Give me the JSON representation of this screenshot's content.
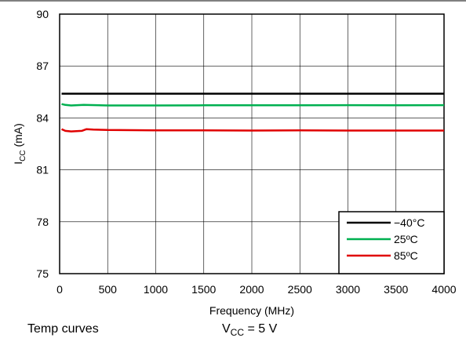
{
  "chart_data": {
    "type": "line",
    "xlabel": "Frequency (MHz)",
    "ylabel_main": "I",
    "ylabel_sub": "CC",
    "ylabel_unit": " (mA)",
    "xlim": [
      0,
      4000
    ],
    "ylim": [
      75,
      90
    ],
    "xticks": [
      0,
      500,
      1000,
      1500,
      2000,
      2500,
      3000,
      3500,
      4000
    ],
    "yticks": [
      75,
      78,
      81,
      84,
      87,
      90
    ],
    "grid": true,
    "legend_position": "bottom-right",
    "series": [
      {
        "name": "−40°C",
        "color": "#000000",
        "x": [
          20,
          250,
          500,
          1000,
          1500,
          2000,
          2500,
          3000,
          3500,
          4000
        ],
        "y": [
          85.4,
          85.4,
          85.4,
          85.4,
          85.4,
          85.4,
          85.4,
          85.4,
          85.4,
          85.4
        ]
      },
      {
        "name": "25ºC",
        "color": "#00b050",
        "x": [
          20,
          60,
          120,
          250,
          500,
          1000,
          1500,
          2000,
          2500,
          3000,
          3500,
          4000
        ],
        "y": [
          84.8,
          84.75,
          84.72,
          84.75,
          84.72,
          84.72,
          84.73,
          84.73,
          84.73,
          84.74,
          84.73,
          84.74
        ]
      },
      {
        "name": "85ºC",
        "color": "#e00000",
        "x": [
          20,
          60,
          120,
          230,
          280,
          350,
          500,
          1000,
          1500,
          2000,
          2500,
          3000,
          3500,
          4000
        ],
        "y": [
          83.35,
          83.25,
          83.22,
          83.25,
          83.35,
          83.33,
          83.3,
          83.28,
          83.28,
          83.27,
          83.28,
          83.27,
          83.27,
          83.27
        ]
      }
    ]
  },
  "footer": {
    "left_text": "Temp curves",
    "right_main": "V",
    "right_sub": "CC",
    "right_rest": " = 5 V"
  }
}
